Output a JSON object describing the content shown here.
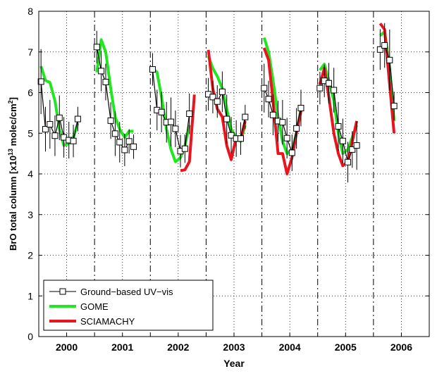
{
  "chart_data": {
    "type": "line",
    "title": "",
    "xlabel": "Year",
    "ylabel_main": "BrO total column [x10",
    "ylabel_exp": "13",
    "ylabel_mid": " molec/cm",
    "ylabel_exp2": "2",
    "ylabel_end": "]",
    "ylim": [
      0,
      8
    ],
    "yticks": [
      "0",
      "1",
      "2",
      "3",
      "4",
      "5",
      "6",
      "7",
      "8"
    ],
    "xlim": [
      2000,
      2007
    ],
    "xtick_labels": [
      "2000",
      "2001",
      "2002",
      "2003",
      "2004",
      "2005",
      "2006"
    ],
    "year_separators": [
      2001,
      2002,
      2003,
      2004,
      2005,
      2006
    ],
    "grid": true,
    "legend_position": "bottom-left",
    "colors": {
      "ground": "#000000",
      "gome": "#22e622",
      "sciamachy": "#e8141e"
    },
    "series": [
      {
        "name": "Ground−based UV−vis",
        "x": [
          2000.04,
          2000.12,
          2000.2,
          2000.29,
          2000.37,
          2000.45,
          2000.54,
          2000.62,
          2000.7,
          2000.79,
          2000.87,
          2001.04,
          2001.12,
          2001.2,
          2001.29,
          2001.37,
          2001.45,
          2001.54,
          2001.62,
          2001.7,
          2001.79,
          2002.04,
          2002.12,
          2002.2,
          2002.29,
          2002.37,
          2002.45,
          2002.54,
          2002.62,
          2002.7,
          2002.79,
          2003.04,
          2003.12,
          2003.2,
          2003.29,
          2003.37,
          2003.45,
          2003.54,
          2003.62,
          2003.7,
          2003.79,
          2004.04,
          2004.12,
          2004.2,
          2004.29,
          2004.37,
          2004.45,
          2004.54,
          2004.62,
          2004.7,
          2004.79,
          2005.04,
          2005.12,
          2005.2,
          2005.29,
          2005.37,
          2005.45,
          2005.54,
          2005.62,
          2005.7,
          2005.79,
          2006.12,
          2006.2,
          2006.29,
          2006.37
        ],
        "values": [
          6.27,
          5.1,
          5.22,
          4.94,
          5.38,
          4.9,
          4.83,
          4.81,
          5.35,
          null,
          null,
          7.12,
          6.53,
          6.26,
          5.31,
          4.99,
          4.78,
          4.59,
          4.8,
          4.67,
          null,
          6.57,
          5.57,
          5.52,
          5.27,
          5.28,
          5.11,
          4.56,
          4.62,
          5.48,
          null,
          5.96,
          5.89,
          5.78,
          6.02,
          5.35,
          4.95,
          4.87,
          4.87,
          5.4,
          null,
          6.11,
          5.84,
          5.45,
          5.3,
          5.27,
          4.88,
          4.52,
          5.12,
          5.62,
          null,
          6.11,
          6.29,
          6.23,
          6.06,
          5.17,
          4.81,
          4.29,
          4.6,
          4.7,
          null,
          7.06,
          7.16,
          6.8,
          5.67
        ],
        "errors": [
          0.8,
          0.55,
          0.6,
          0.5,
          0.55,
          0.5,
          0.45,
          0.4,
          0.3,
          null,
          null,
          0.4,
          0.5,
          0.45,
          0.45,
          0.55,
          0.5,
          0.4,
          0.3,
          0.3,
          null,
          0.4,
          0.5,
          0.5,
          0.5,
          0.6,
          0.45,
          0.4,
          0.35,
          0.5,
          null,
          0.4,
          0.4,
          0.4,
          0.5,
          0.6,
          0.45,
          0.45,
          0.4,
          0.3,
          null,
          0.6,
          0.45,
          0.5,
          0.5,
          0.55,
          0.5,
          0.45,
          0.5,
          0.45,
          null,
          0.4,
          0.4,
          0.5,
          0.55,
          0.6,
          0.55,
          0.5,
          0.45,
          0.6,
          null,
          0.5,
          0.55,
          0.75,
          0.35
        ]
      },
      {
        "name": "GOME",
        "x": [
          2000.04,
          2000.12,
          2000.2,
          2000.29,
          2000.37,
          2000.45,
          2000.54,
          2000.62,
          2000.7,
          2000.79,
          null,
          2001.04,
          2001.12,
          2001.2,
          2001.29,
          2001.37,
          2001.45,
          2001.54,
          2001.62,
          2001.7,
          null,
          2002.04,
          2002.12,
          2002.2,
          2002.29,
          2002.37,
          2002.45,
          2002.54,
          2002.62,
          2002.7,
          null,
          2003.04,
          2003.12,
          2003.2,
          2003.29,
          2003.37,
          2003.45,
          2003.54,
          2003.62,
          2003.7,
          null,
          2004.04,
          2004.12,
          2004.2,
          2004.29,
          2004.37,
          2004.45,
          2004.54,
          2004.62,
          2004.7,
          null,
          2005.04,
          2005.12,
          2005.2,
          2005.29,
          2005.37,
          2005.45,
          2005.54,
          2005.62,
          2005.7,
          null,
          2006.12,
          2006.2,
          2006.29,
          2006.37
        ],
        "values": [
          6.65,
          6.3,
          6.25,
          5.8,
          5.1,
          4.7,
          4.75,
          4.9,
          5.25,
          null,
          null,
          6.5,
          7.3,
          7.0,
          6.1,
          5.4,
          5.1,
          4.9,
          5.05,
          5.05,
          null,
          6.6,
          6.5,
          5.9,
          5.1,
          4.6,
          4.3,
          4.4,
          4.7,
          5.2,
          null,
          6.9,
          6.6,
          6.4,
          6.1,
          5.6,
          5.1,
          4.9,
          4.8,
          5.2,
          null,
          7.35,
          7.0,
          6.3,
          5.4,
          4.8,
          4.5,
          4.6,
          5.0,
          5.6,
          null,
          6.55,
          6.7,
          6.3,
          5.8,
          5.0,
          4.5,
          4.6,
          4.9,
          5.2,
          null,
          7.4,
          7.5,
          6.6,
          5.3
        ]
      },
      {
        "name": "SCIAMACHY",
        "x": [
          2002.54,
          2002.62,
          2002.7,
          2002.79,
          null,
          2003.04,
          2003.12,
          2003.2,
          2003.29,
          2003.37,
          2003.45,
          2003.54,
          2003.62,
          2003.7,
          null,
          2004.04,
          2004.12,
          2004.2,
          2004.29,
          2004.37,
          2004.45,
          2004.54,
          2004.62,
          2004.7,
          null,
          2005.04,
          2005.12,
          2005.2,
          2005.29,
          2005.37,
          2005.45,
          2005.54,
          2005.62,
          2005.7,
          null,
          2006.12,
          2006.2,
          2006.29,
          2006.37
        ],
        "values": [
          4.08,
          4.1,
          4.3,
          5.95,
          null,
          7.05,
          6.1,
          5.6,
          5.4,
          4.7,
          4.35,
          4.9,
          4.85,
          5.3,
          null,
          7.1,
          6.8,
          5.8,
          4.5,
          4.5,
          4.0,
          4.4,
          5.0,
          5.55,
          null,
          6.2,
          6.6,
          5.9,
          5.0,
          4.5,
          4.2,
          4.3,
          4.8,
          5.3,
          null,
          7.7,
          7.55,
          6.2,
          5.0
        ]
      }
    ]
  }
}
